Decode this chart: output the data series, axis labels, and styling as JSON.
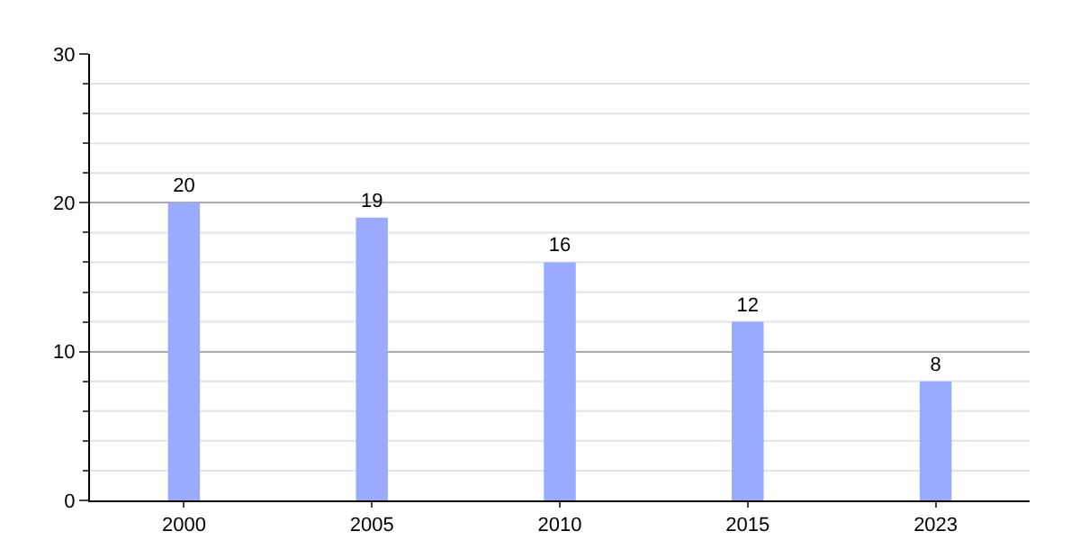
{
  "chart_data": {
    "type": "bar",
    "categories": [
      "2000",
      "2005",
      "2010",
      "2015",
      "2023"
    ],
    "values": [
      20,
      19,
      16,
      12,
      8
    ],
    "color": "#99aaff",
    "data_labels": true,
    "ylim": [
      0,
      30
    ],
    "yticks": [
      0,
      {
        "value": 2,
        "label": null
      },
      {
        "value": 4,
        "label": null
      },
      {
        "value": 6,
        "label": null
      },
      {
        "value": 8,
        "label": null
      },
      10,
      {
        "value": 12,
        "label": null
      },
      {
        "value": 14,
        "label": null
      },
      {
        "value": 16,
        "label": null
      },
      {
        "value": 18,
        "label": null
      },
      20,
      {
        "value": 22,
        "label": null
      },
      {
        "value": 24,
        "label": null
      },
      {
        "value": 26,
        "label": null
      },
      {
        "value": 28,
        "label": null
      },
      30
    ],
    "grid": "y"
  }
}
